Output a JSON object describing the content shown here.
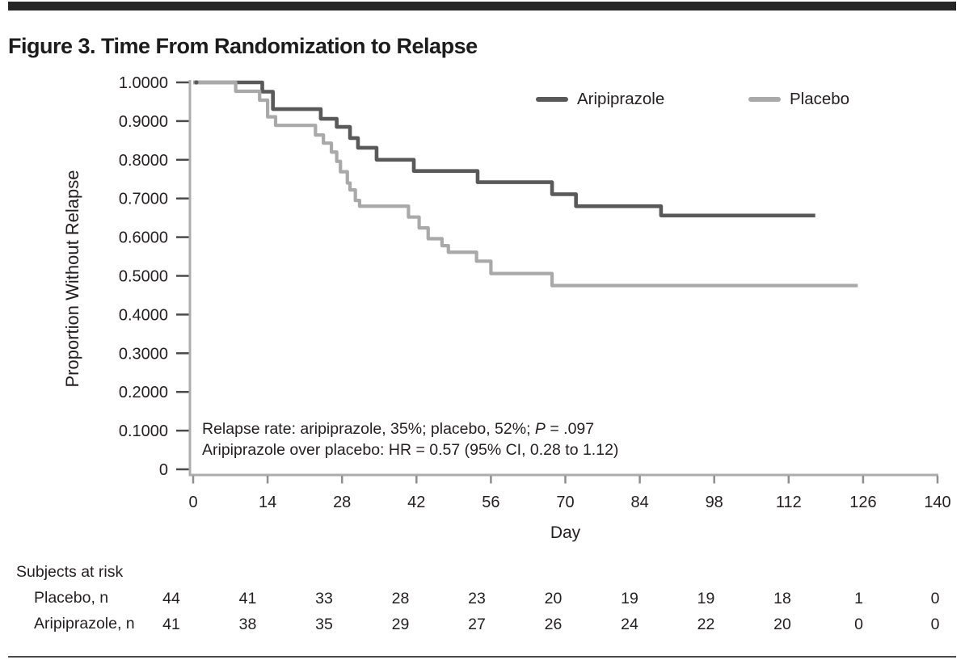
{
  "page": {
    "title": "Figure 3. Time From Randomization to Relapse"
  },
  "chart_data": {
    "type": "line",
    "subtype": "kaplan-meier-step",
    "title": "Figure 3. Time From Randomization to Relapse",
    "xlabel": "Day",
    "ylabel": "Proportion Without Relapse",
    "xlim": [
      0,
      140
    ],
    "ylim": [
      0,
      1
    ],
    "grid": false,
    "legend_position": "top-right-inside",
    "xticks": [
      0,
      14,
      28,
      42,
      56,
      70,
      84,
      98,
      112,
      126,
      140
    ],
    "yticks": [
      {
        "value": 1.0,
        "label": "1.0000"
      },
      {
        "value": 0.9,
        "label": "0.9000"
      },
      {
        "value": 0.8,
        "label": "0.8000"
      },
      {
        "value": 0.7,
        "label": "0.7000"
      },
      {
        "value": 0.6,
        "label": "0.6000"
      },
      {
        "value": 0.5,
        "label": "0.5000"
      },
      {
        "value": 0.4,
        "label": "0.4000"
      },
      {
        "value": 0.3,
        "label": "0.3000"
      },
      {
        "value": 0.2,
        "label": "0.2000"
      },
      {
        "value": 0.1,
        "label": "0.1000"
      },
      {
        "value": 0.0,
        "label": "0"
      }
    ],
    "series": [
      {
        "name": "Aripiprazole",
        "color": "#595959",
        "step_points": [
          [
            0,
            1.0
          ],
          [
            13,
            0.976
          ],
          [
            15,
            0.931
          ],
          [
            24,
            0.906
          ],
          [
            27,
            0.885
          ],
          [
            29.5,
            0.856
          ],
          [
            31,
            0.831
          ],
          [
            34.5,
            0.8
          ],
          [
            41.5,
            0.771
          ],
          [
            53.5,
            0.742
          ],
          [
            67.5,
            0.711
          ],
          [
            72,
            0.68
          ],
          [
            88,
            0.656
          ]
        ],
        "end_day": 117,
        "final_value": 0.656
      },
      {
        "name": "Placebo",
        "color": "#a9a9a9",
        "step_points": [
          [
            0,
            1.0
          ],
          [
            8,
            0.977
          ],
          [
            12.5,
            0.954
          ],
          [
            14,
            0.911
          ],
          [
            15.5,
            0.889
          ],
          [
            23,
            0.864
          ],
          [
            24.5,
            0.843
          ],
          [
            26,
            0.82
          ],
          [
            27,
            0.796
          ],
          [
            27.7,
            0.769
          ],
          [
            29,
            0.74
          ],
          [
            29.5,
            0.722
          ],
          [
            30.5,
            0.695
          ],
          [
            31.3,
            0.68
          ],
          [
            40.5,
            0.652
          ],
          [
            42.5,
            0.624
          ],
          [
            44.2,
            0.596
          ],
          [
            46.8,
            0.578
          ],
          [
            48,
            0.561
          ],
          [
            53.3,
            0.538
          ],
          [
            56,
            0.506
          ],
          [
            67.5,
            0.475
          ]
        ],
        "end_day": 125,
        "final_value": 0.475
      }
    ],
    "annotation1": {
      "pre": "Relapse rate: aripiprazole, 35%; placebo, 52%; ",
      "italic": "P",
      "post": " = .097"
    },
    "annotation2": "Aripiprazole over placebo: HR = 0.57 (95% CI, 0.28 to 1.12)",
    "at_risk": {
      "header": "Subjects at risk",
      "rows": [
        {
          "label": "Placebo, n",
          "values": [
            44,
            41,
            33,
            28,
            23,
            20,
            19,
            19,
            18,
            1,
            0
          ]
        },
        {
          "label": "Aripiprazole, n",
          "values": [
            41,
            38,
            35,
            29,
            27,
            26,
            24,
            22,
            20,
            0,
            0
          ]
        }
      ]
    },
    "axis_color": "#acacac",
    "tick_color": "#4a4a4a",
    "text_color": "#231f20"
  }
}
